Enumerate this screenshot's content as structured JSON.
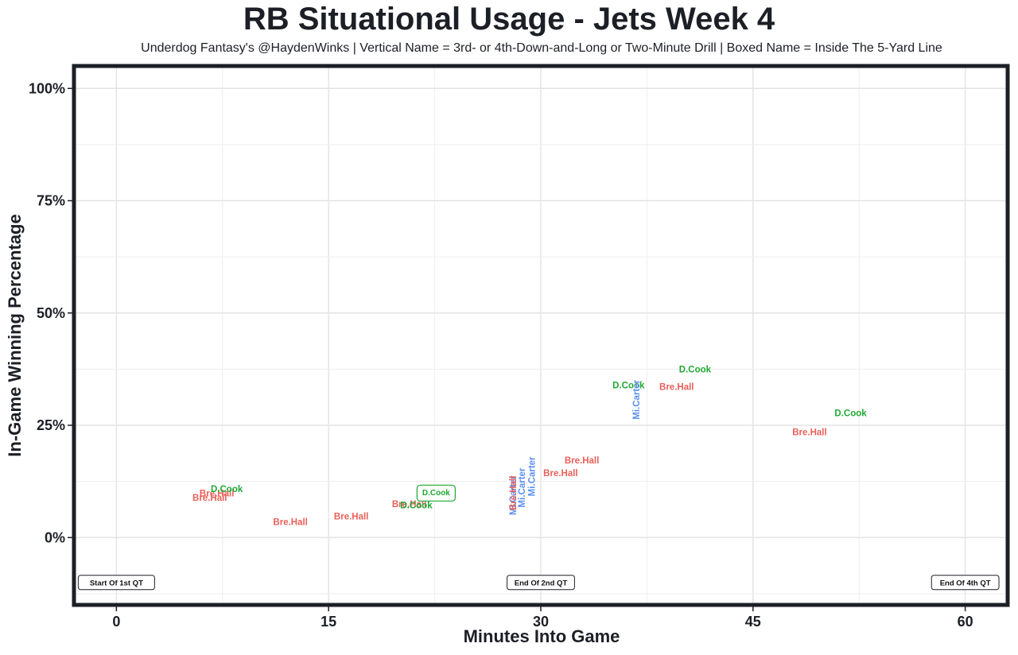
{
  "chart_data": {
    "type": "scatter",
    "title": "RB Situational Usage - Jets Week 4",
    "subtitle": "Underdog Fantasy's @HaydenWinks | Vertical Name = 3rd- or 4th-Down-and-Long or Two-Minute Drill | Boxed Name = Inside The 5-Yard Line",
    "xlabel": "Minutes Into Game",
    "ylabel": "In-Game Winning Percentage",
    "xlim": [
      -3,
      63
    ],
    "ylim": [
      -15,
      105
    ],
    "x_ticks": [
      0,
      15,
      30,
      45,
      60
    ],
    "x_tick_labels": [
      "0",
      "15",
      "30",
      "45",
      "60"
    ],
    "y_ticks": [
      0,
      25,
      50,
      75,
      100
    ],
    "y_tick_labels": [
      "0%",
      "25%",
      "50%",
      "75%",
      "100%"
    ],
    "grid": true,
    "colors": {
      "Bre.Hall": "#e8605a",
      "D.Cook": "#1fa832",
      "Mi.Carter": "#5b8ff0"
    },
    "points": [
      {
        "name": "Bre.Hall",
        "x": 6.6,
        "y": 8.7,
        "vertical": false,
        "boxed": false
      },
      {
        "name": "Bre.Hall",
        "x": 7.1,
        "y": 9.7,
        "vertical": false,
        "boxed": false
      },
      {
        "name": "D.Cook",
        "x": 7.8,
        "y": 10.7,
        "vertical": false,
        "boxed": false
      },
      {
        "name": "Bre.Hall",
        "x": 12.3,
        "y": 3.3,
        "vertical": false,
        "boxed": false
      },
      {
        "name": "Bre.Hall",
        "x": 16.6,
        "y": 4.6,
        "vertical": false,
        "boxed": false
      },
      {
        "name": "Bre.Hall",
        "x": 20.7,
        "y": 7.3,
        "vertical": false,
        "boxed": false
      },
      {
        "name": "D.Cook",
        "x": 21.2,
        "y": 7.0,
        "vertical": false,
        "boxed": false
      },
      {
        "name": "D.Cook",
        "x": 22.6,
        "y": 9.9,
        "vertical": false,
        "boxed": true
      },
      {
        "name": "Mi.Carter",
        "x": 28.1,
        "y": 9.4,
        "vertical": true,
        "boxed": false
      },
      {
        "name": "Bre.Hall",
        "x": 28.1,
        "y": 9.9,
        "vertical": true,
        "boxed": false
      },
      {
        "name": "Mi.Carter",
        "x": 28.7,
        "y": 11.1,
        "vertical": true,
        "boxed": false
      },
      {
        "name": "Mi.Carter",
        "x": 29.4,
        "y": 13.6,
        "vertical": true,
        "boxed": false
      },
      {
        "name": "Bre.Hall",
        "x": 31.4,
        "y": 14.2,
        "vertical": false,
        "boxed": false
      },
      {
        "name": "Bre.Hall",
        "x": 32.9,
        "y": 17.0,
        "vertical": false,
        "boxed": false
      },
      {
        "name": "D.Cook",
        "x": 36.2,
        "y": 33.8,
        "vertical": false,
        "boxed": false
      },
      {
        "name": "Mi.Carter",
        "x": 36.8,
        "y": 30.7,
        "vertical": true,
        "boxed": false
      },
      {
        "name": "Bre.Hall",
        "x": 39.6,
        "y": 33.4,
        "vertical": false,
        "boxed": false
      },
      {
        "name": "D.Cook",
        "x": 40.9,
        "y": 37.3,
        "vertical": false,
        "boxed": false
      },
      {
        "name": "Bre.Hall",
        "x": 49.0,
        "y": 23.3,
        "vertical": false,
        "boxed": false
      },
      {
        "name": "D.Cook",
        "x": 51.9,
        "y": 27.6,
        "vertical": false,
        "boxed": false
      }
    ],
    "quarter_markers": [
      {
        "label": "Start Of 1st QT",
        "x": 0,
        "y": -10
      },
      {
        "label": "End Of 2nd QT",
        "x": 30,
        "y": -10
      },
      {
        "label": "End Of 4th QT",
        "x": 60,
        "y": -10
      }
    ]
  }
}
